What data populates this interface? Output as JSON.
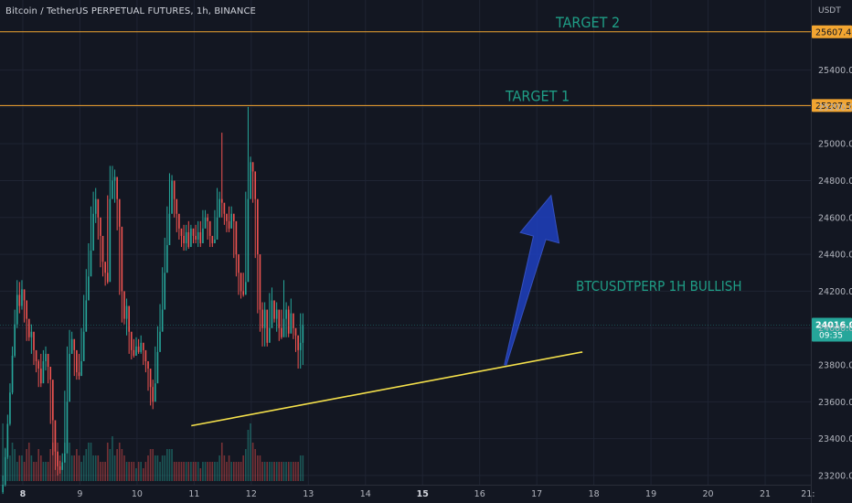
{
  "header": {
    "title": "Bitcoin / TetherUS PERPETUAL FUTURES, 1h, BINANCE"
  },
  "currency": "USDT",
  "colors": {
    "background": "#131722",
    "grid": "#1f2433",
    "up": "#26a69a",
    "down": "#ef5350",
    "target_line": "#f2a531",
    "trendline": "#f5e14b",
    "arrow": "#1e3fbf",
    "annotation_text": "#1f9e86",
    "axis_text": "#b2b5be"
  },
  "chart_data": {
    "type": "candlestick",
    "title": "Bitcoin / TetherUS PERPETUAL FUTURES, 1h, BINANCE",
    "x_axis": {
      "tick_labels": [
        "8",
        "9",
        "10",
        "11",
        "12",
        "13",
        "14",
        "15",
        "16",
        "17",
        "18",
        "19",
        "20",
        "21",
        "21:"
      ],
      "bold_ticks": [
        "8",
        "15"
      ],
      "range_days": [
        7.6,
        21.8
      ]
    },
    "y_axis": {
      "unit": "USDT",
      "tick_labels": [
        "25400.0",
        "25200.0",
        "25000.0",
        "24800.0",
        "24600.0",
        "24400.0",
        "24200.0",
        "24000.0",
        "23800.0",
        "23600.0",
        "23400.0",
        "23200.0"
      ],
      "tick_values": [
        25400,
        25200,
        25000,
        24800,
        24600,
        24400,
        24200,
        24000,
        23800,
        23600,
        23400,
        23200
      ],
      "range": [
        23150,
        25780
      ]
    },
    "price_series": {
      "name": "BTCUSDTPERP 1h",
      "start_day": 7.65,
      "interval_days": 0.0417,
      "close": [
        23150,
        23300,
        23480,
        23650,
        23850,
        24020,
        24180,
        24120,
        24210,
        24150,
        24050,
        23950,
        23980,
        23880,
        23820,
        23780,
        23700,
        23820,
        23860,
        23790,
        23720,
        23500,
        23330,
        23250,
        23230,
        23270,
        23320,
        23600,
        23860,
        23940,
        23880,
        23760,
        23740,
        23820,
        23980,
        24150,
        24280,
        24420,
        24620,
        24700,
        24600,
        24500,
        24360,
        24300,
        24250,
        24700,
        24800,
        24820,
        24700,
        24550,
        24200,
        24050,
        24120,
        23980,
        23880,
        23850,
        23900,
        23870,
        23920,
        23880,
        23820,
        23780,
        23680,
        23600,
        23700,
        23870,
        23980,
        24100,
        24300,
        24450,
        24620,
        24800,
        24700,
        24620,
        24540,
        24500,
        24460,
        24520,
        24440,
        24540,
        24500,
        24480,
        24520,
        24460,
        24540,
        24600,
        24580,
        24500,
        24460,
        24480,
        24600,
        24700,
        24680,
        24620,
        24580,
        24540,
        24620,
        24580,
        24400,
        24300,
        24200,
        24180,
        24250,
        24700,
        24900,
        24850,
        24700,
        24400,
        24100,
        24000,
        24100,
        23920,
        24000,
        24150,
        24050,
        24100,
        24000,
        23950,
        24050,
        24100,
        23970,
        24080,
        24000,
        23960,
        23880,
        23920,
        24016
      ],
      "high": [
        23200,
        23350,
        23530,
        23700,
        23900,
        24100,
        24260,
        24250,
        24260,
        24200,
        24110,
        24000,
        24020,
        23920,
        23870,
        23830,
        23860,
        23880,
        23900,
        23840,
        23760,
        23550,
        23380,
        23300,
        23280,
        23320,
        23660,
        23900,
        23990,
        23980,
        23940,
        23820,
        23860,
        24000,
        24180,
        24320,
        24460,
        24660,
        24740,
        24760,
        24640,
        24540,
        24420,
        24340,
        24720,
        24880,
        24880,
        24860,
        24760,
        24580,
        24260,
        24150,
        24160,
        24030,
        23920,
        23940,
        23950,
        23940,
        23960,
        23920,
        23850,
        23820,
        23710,
        23720,
        23900,
        24010,
        24130,
        24330,
        24490,
        24660,
        24840,
        24830,
        24740,
        24660,
        24580,
        24540,
        24560,
        24560,
        24580,
        24560,
        24540,
        24560,
        24580,
        24580,
        24640,
        24640,
        24620,
        24540,
        24500,
        24640,
        24760,
        24740,
        25060,
        24660,
        24620,
        24660,
        24660,
        24620,
        24440,
        24340,
        24240,
        24300,
        24740,
        25200,
        24930,
        24900,
        24740,
        24440,
        24140,
        24140,
        24140,
        24040,
        24190,
        24220,
        24140,
        24140,
        24010,
        24100,
        24260,
        24140,
        24120,
        24160,
        24050,
        23990,
        23960,
        24080,
        24080
      ],
      "low": [
        23100,
        23140,
        23290,
        23470,
        23640,
        23840,
        24000,
        24080,
        24100,
        24030,
        23930,
        23930,
        23860,
        23800,
        23760,
        23680,
        23680,
        23790,
        23770,
        23700,
        23480,
        23310,
        23230,
        23200,
        23210,
        23250,
        23300,
        23580,
        23840,
        23860,
        23740,
        23720,
        23720,
        23800,
        23960,
        24130,
        24260,
        24400,
        24580,
        24570,
        24480,
        24330,
        24280,
        24230,
        24240,
        24680,
        24780,
        24680,
        24530,
        24180,
        24030,
        24020,
        23960,
        23860,
        23830,
        23840,
        23850,
        23860,
        23860,
        23800,
        23760,
        23660,
        23580,
        23560,
        23680,
        23850,
        23960,
        24080,
        24280,
        24430,
        24600,
        24680,
        24600,
        24520,
        24480,
        24440,
        24420,
        24420,
        24430,
        24480,
        24460,
        24460,
        24440,
        24440,
        24520,
        24560,
        24480,
        24440,
        24440,
        24460,
        24580,
        24660,
        24600,
        24560,
        24520,
        24520,
        24560,
        24380,
        24280,
        24180,
        24160,
        24170,
        24230,
        24680,
        24820,
        24680,
        24380,
        24080,
        23980,
        23900,
        23900,
        23900,
        23980,
        24030,
        24030,
        23980,
        23930,
        23940,
        24030,
        23950,
        23950,
        23980,
        23940,
        23870,
        23780,
        23780,
        23800
      ]
    },
    "volume_series": {
      "name": "Volume",
      "values": [
        0.9,
        0.5,
        0.7,
        0.4,
        0.6,
        0.5,
        0.3,
        0.4,
        0.4,
        0.3,
        0.5,
        0.6,
        0.4,
        0.3,
        0.3,
        0.5,
        0.4,
        0.3,
        0.3,
        0.3,
        0.5,
        0.6,
        0.8,
        0.6,
        0.4,
        0.3,
        0.6,
        0.8,
        0.6,
        0.4,
        0.4,
        0.5,
        0.4,
        0.3,
        0.4,
        0.5,
        0.6,
        0.6,
        0.4,
        0.4,
        0.4,
        0.3,
        0.3,
        0.3,
        0.6,
        0.5,
        0.7,
        0.4,
        0.5,
        0.6,
        0.5,
        0.4,
        0.3,
        0.3,
        0.3,
        0.3,
        0.2,
        0.3,
        0.3,
        0.2,
        0.3,
        0.4,
        0.5,
        0.5,
        0.4,
        0.4,
        0.3,
        0.4,
        0.4,
        0.5,
        0.5,
        0.5,
        0.3,
        0.3,
        0.3,
        0.3,
        0.3,
        0.3,
        0.3,
        0.3,
        0.3,
        0.3,
        0.3,
        0.2,
        0.3,
        0.3,
        0.3,
        0.3,
        0.3,
        0.3,
        0.3,
        0.4,
        0.6,
        0.4,
        0.3,
        0.4,
        0.3,
        0.3,
        0.3,
        0.3,
        0.3,
        0.4,
        0.5,
        0.8,
        0.9,
        0.6,
        0.5,
        0.4,
        0.4,
        0.3,
        0.3,
        0.3,
        0.3,
        0.3,
        0.3,
        0.3,
        0.3,
        0.3,
        0.3,
        0.3,
        0.3,
        0.3,
        0.3,
        0.3,
        0.3,
        0.4,
        0.4
      ]
    },
    "target_lines": [
      {
        "label": "TARGET 2",
        "price": 25607.4,
        "price_label": "25607.4"
      },
      {
        "label": "TARGET 1",
        "price": 25207.5,
        "price_label": "25207.5"
      }
    ],
    "trendline": {
      "points": [
        [
          10.95,
          23470
        ],
        [
          17.8,
          23870
        ]
      ]
    },
    "arrow": {
      "from": [
        16.45,
        23800
      ],
      "to": [
        17.25,
        24720
      ]
    },
    "annotation": {
      "text": "BTCUSDTPERP 1H BULLISH"
    },
    "last_price": {
      "value_label": "24016.0",
      "countdown": "09:35",
      "value": 24016
    }
  }
}
